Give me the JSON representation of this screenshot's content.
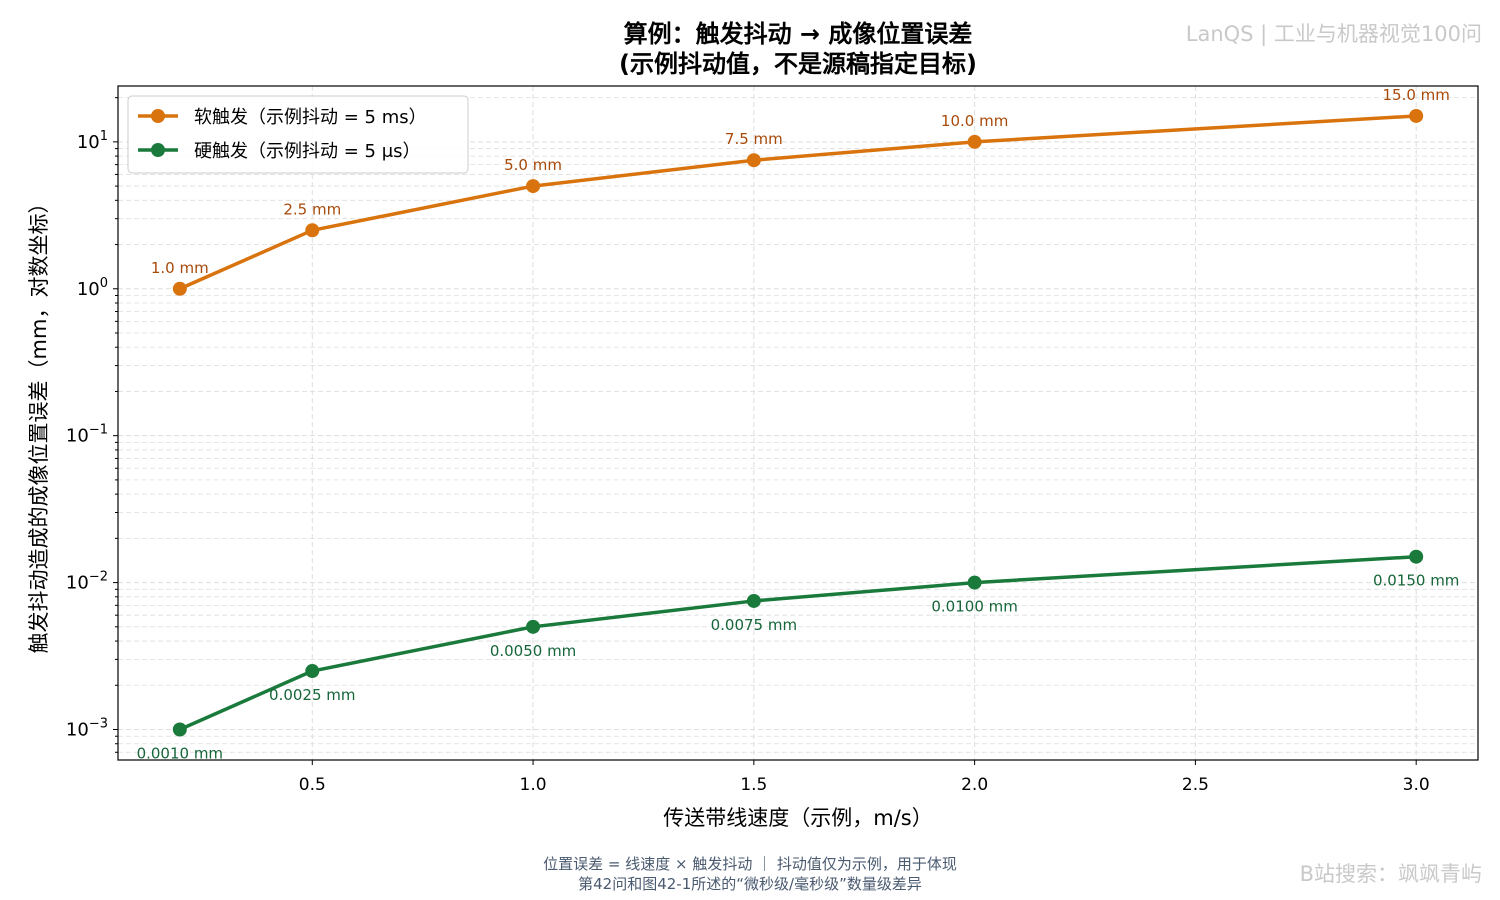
{
  "header": {
    "title_line1": "算例：触发抖动 → 成像位置误差",
    "title_line2": "(示例抖动值，不是源稿指定目标)"
  },
  "watermarks": {
    "top_right": "LanQS | 工业与机器视觉100问",
    "bottom_right": "B站搜索：飒飒青屿"
  },
  "footer": {
    "line1": "位置误差 = 线速度 × 触发抖动 ｜ 抖动值仅为示例，用于体现",
    "line2": "第42问和图42-1所述的“微秒级/毫秒级”数量级差异"
  },
  "chart_data": {
    "type": "line",
    "xlabel": "传送带线速度（示例，m/s）",
    "ylabel": "触发抖动造成的成像位置误差（mm，对数坐标）",
    "x": [
      0.2,
      0.5,
      1.0,
      1.5,
      2.0,
      3.0
    ],
    "x_ticks": [
      "0.5",
      "1.0",
      "1.5",
      "2.0",
      "2.5",
      "3.0"
    ],
    "x_tick_values": [
      0.5,
      1.0,
      1.5,
      2.0,
      2.5,
      3.0
    ],
    "xlim": [
      0.06,
      3.14
    ],
    "y_scale": "log",
    "ylim": [
      0.00062,
      24
    ],
    "y_tick_values": [
      0.001,
      0.01,
      0.1,
      1,
      10
    ],
    "y_tick_exponents": [
      "−3",
      "−2",
      "−1",
      "0",
      "1"
    ],
    "y_tick_base": "10",
    "grid": true,
    "legend_position": "top-left",
    "series": [
      {
        "name": "软触发（示例抖动 = 5 ms）",
        "color": "#d9730d",
        "label_color": "#a84a0a",
        "values": [
          1.0,
          2.5,
          5.0,
          7.5,
          10.0,
          15.0
        ],
        "labels": [
          "1.0 mm",
          "2.5 mm",
          "5.0 mm",
          "7.5 mm",
          "10.0 mm",
          "15.0 mm"
        ],
        "label_position": "above"
      },
      {
        "name": "硬触发（示例抖动 = 5 μs）",
        "color": "#1a7a3c",
        "label_color": "#16663a",
        "values": [
          0.001,
          0.0025,
          0.005,
          0.0075,
          0.01,
          0.015
        ],
        "labels": [
          "0.0010 mm",
          "0.0025 mm",
          "0.0050 mm",
          "0.0075 mm",
          "0.0100 mm",
          "0.0150 mm"
        ],
        "label_position": "below"
      }
    ]
  }
}
